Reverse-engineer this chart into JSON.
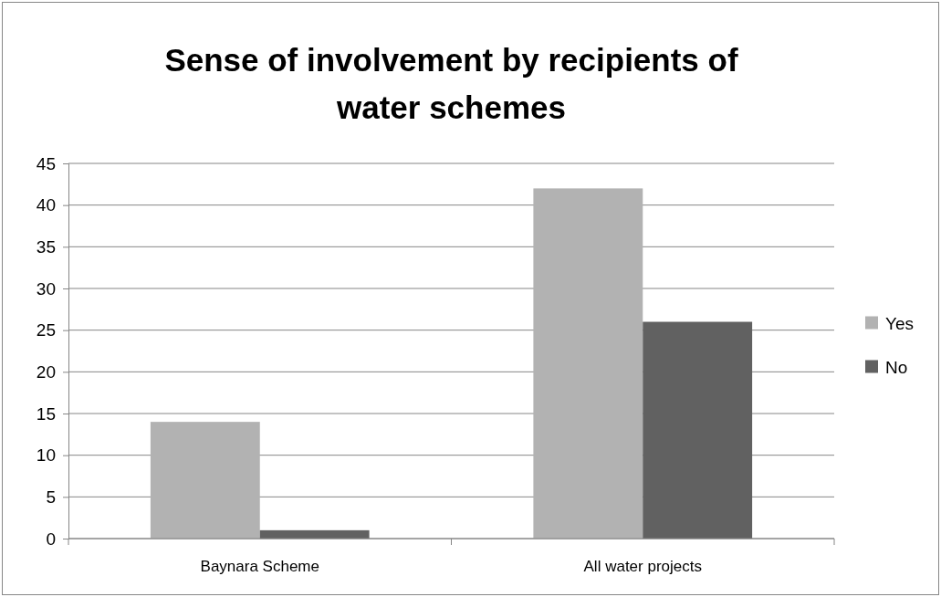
{
  "chart_data": {
    "type": "bar",
    "title": "Sense of involvement by recipients of water schemes",
    "categories": [
      "Baynara Scheme",
      "All water projects"
    ],
    "series": [
      {
        "name": "Yes",
        "color": "#b2b2b2",
        "values": [
          14,
          42
        ]
      },
      {
        "name": "No",
        "color": "#616161",
        "values": [
          1,
          26
        ]
      }
    ],
    "ylim": [
      0,
      45
    ],
    "yticks": [
      0,
      5,
      10,
      15,
      20,
      25,
      30,
      35,
      40,
      45
    ],
    "grid": "y",
    "legend": "right"
  }
}
